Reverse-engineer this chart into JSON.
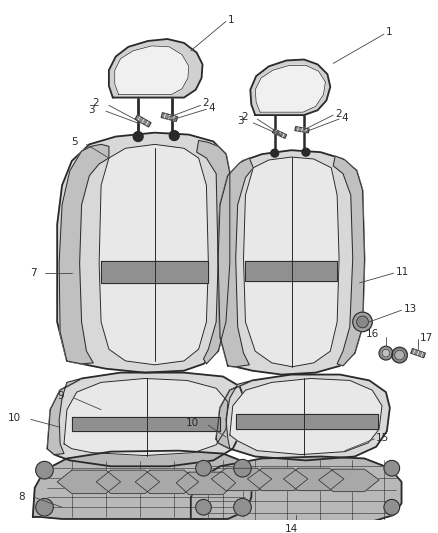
{
  "bg_color": "#ffffff",
  "line_color": "#2a2a2a",
  "label_color": "#2a2a2a",
  "fig_width": 4.38,
  "fig_height": 5.33,
  "dpi": 100,
  "lw_outer": 1.3,
  "lw_inner": 0.7,
  "lw_leader": 0.6,
  "label_fs": 7.5,
  "fill_outer": "#d8d8d8",
  "fill_mid": "#c0c0c0",
  "fill_inner": "#e8e8e8",
  "fill_stripe": "#909090",
  "fill_track": "#b8b8b8",
  "fill_headrest": "#d0d0d0"
}
